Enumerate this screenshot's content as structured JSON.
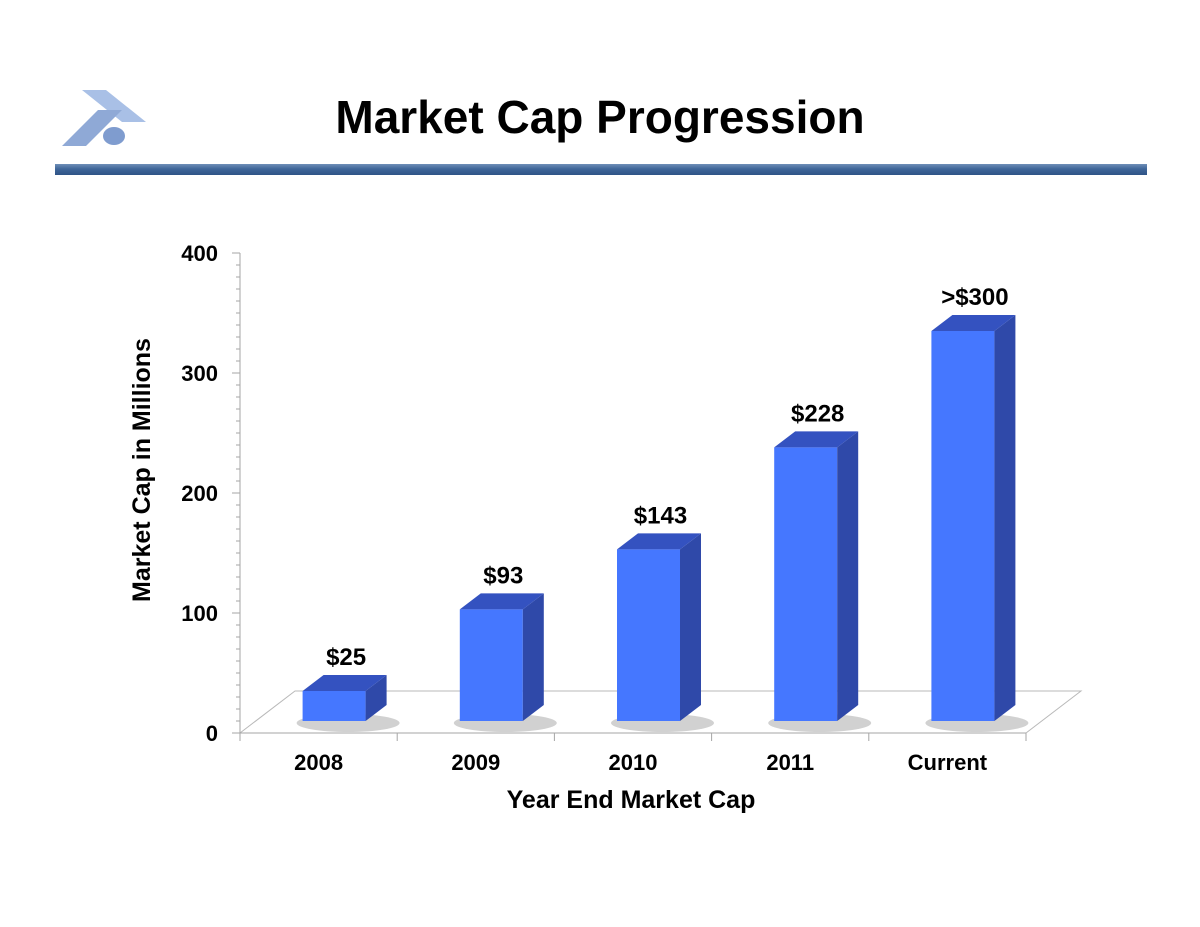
{
  "slide": {
    "title": "Market Cap Progression"
  },
  "logo": {
    "icon": "company-logo-icon"
  },
  "colors": {
    "bar_front": "#4577ff",
    "bar_side": "#2f49a9",
    "bar_top": "#3452c0",
    "rule": "#3f6699",
    "logo": "#8fa9d6"
  },
  "chart_data": {
    "type": "bar",
    "categories": [
      "2008",
      "2009",
      "2010",
      "2011",
      "Current"
    ],
    "values": [
      25,
      93,
      143,
      228,
      325
    ],
    "data_labels": [
      "$25",
      "$93",
      "$143",
      "$228",
      ">$300"
    ],
    "title": "",
    "xlabel": "Year End Market Cap",
    "ylabel": "Market Cap in Millions",
    "ylim": [
      0,
      400
    ],
    "yticks": [
      "0",
      "100",
      "200",
      "300",
      "400"
    ],
    "grid": false,
    "legend": "none",
    "style": "3d-column"
  }
}
